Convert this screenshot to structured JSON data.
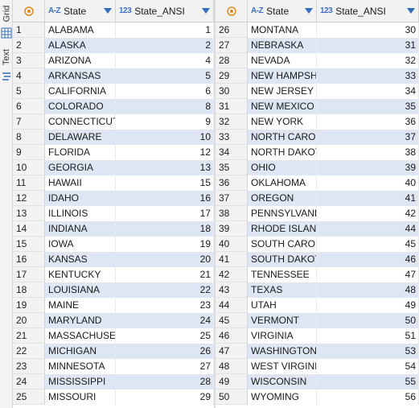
{
  "side_tabs": {
    "grid": "Grid",
    "text": "Text"
  },
  "columns": {
    "state_type": "A-Z",
    "state": "State",
    "ansi_type": "123",
    "ansi": "State_ANSI"
  },
  "left_rows": [
    {
      "n": "1",
      "state": "ALABAMA",
      "ansi": "1"
    },
    {
      "n": "2",
      "state": "ALASKA",
      "ansi": "2"
    },
    {
      "n": "3",
      "state": "ARIZONA",
      "ansi": "4"
    },
    {
      "n": "4",
      "state": "ARKANSAS",
      "ansi": "5"
    },
    {
      "n": "5",
      "state": "CALIFORNIA",
      "ansi": "6"
    },
    {
      "n": "6",
      "state": "COLORADO",
      "ansi": "8"
    },
    {
      "n": "7",
      "state": "CONNECTICUT",
      "ansi": "9"
    },
    {
      "n": "8",
      "state": "DELAWARE",
      "ansi": "10"
    },
    {
      "n": "9",
      "state": "FLORIDA",
      "ansi": "12"
    },
    {
      "n": "10",
      "state": "GEORGIA",
      "ansi": "13"
    },
    {
      "n": "11",
      "state": "HAWAII",
      "ansi": "15"
    },
    {
      "n": "12",
      "state": "IDAHO",
      "ansi": "16"
    },
    {
      "n": "13",
      "state": "ILLINOIS",
      "ansi": "17"
    },
    {
      "n": "14",
      "state": "INDIANA",
      "ansi": "18"
    },
    {
      "n": "15",
      "state": "IOWA",
      "ansi": "19"
    },
    {
      "n": "16",
      "state": "KANSAS",
      "ansi": "20"
    },
    {
      "n": "17",
      "state": "KENTUCKY",
      "ansi": "21"
    },
    {
      "n": "18",
      "state": "LOUISIANA",
      "ansi": "22"
    },
    {
      "n": "19",
      "state": "MAINE",
      "ansi": "23"
    },
    {
      "n": "20",
      "state": "MARYLAND",
      "ansi": "24"
    },
    {
      "n": "21",
      "state": "MASSACHUSET",
      "ansi": "25"
    },
    {
      "n": "22",
      "state": "MICHIGAN",
      "ansi": "26"
    },
    {
      "n": "23",
      "state": "MINNESOTA",
      "ansi": "27"
    },
    {
      "n": "24",
      "state": "MISSISSIPPI",
      "ansi": "28"
    },
    {
      "n": "25",
      "state": "MISSOURI",
      "ansi": "29"
    }
  ],
  "right_rows": [
    {
      "n": "26",
      "state": "MONTANA",
      "ansi": "30"
    },
    {
      "n": "27",
      "state": "NEBRASKA",
      "ansi": "31"
    },
    {
      "n": "28",
      "state": "NEVADA",
      "ansi": "32"
    },
    {
      "n": "29",
      "state": "NEW HAMPSHII",
      "ansi": "33"
    },
    {
      "n": "30",
      "state": "NEW JERSEY",
      "ansi": "34"
    },
    {
      "n": "31",
      "state": "NEW MEXICO",
      "ansi": "35"
    },
    {
      "n": "32",
      "state": "NEW YORK",
      "ansi": "36"
    },
    {
      "n": "33",
      "state": "NORTH CAROLI",
      "ansi": "37"
    },
    {
      "n": "34",
      "state": "NORTH DAKOTA",
      "ansi": "38"
    },
    {
      "n": "35",
      "state": "OHIO",
      "ansi": "39"
    },
    {
      "n": "36",
      "state": "OKLAHOMA",
      "ansi": "40"
    },
    {
      "n": "37",
      "state": "OREGON",
      "ansi": "41"
    },
    {
      "n": "38",
      "state": "PENNSYLVANIA",
      "ansi": "42"
    },
    {
      "n": "39",
      "state": "RHODE ISLAND",
      "ansi": "44"
    },
    {
      "n": "40",
      "state": "SOUTH CAROLII",
      "ansi": "45"
    },
    {
      "n": "41",
      "state": "SOUTH DAKOTA",
      "ansi": "46"
    },
    {
      "n": "42",
      "state": "TENNESSEE",
      "ansi": "47"
    },
    {
      "n": "43",
      "state": "TEXAS",
      "ansi": "48"
    },
    {
      "n": "44",
      "state": "UTAH",
      "ansi": "49"
    },
    {
      "n": "45",
      "state": "VERMONT",
      "ansi": "50"
    },
    {
      "n": "46",
      "state": "VIRGINIA",
      "ansi": "51"
    },
    {
      "n": "47",
      "state": "WASHINGTON",
      "ansi": "53"
    },
    {
      "n": "48",
      "state": "WEST VIRGINIA",
      "ansi": "54"
    },
    {
      "n": "49",
      "state": "WISCONSIN",
      "ansi": "55"
    },
    {
      "n": "50",
      "state": "WYOMING",
      "ansi": "56"
    }
  ]
}
